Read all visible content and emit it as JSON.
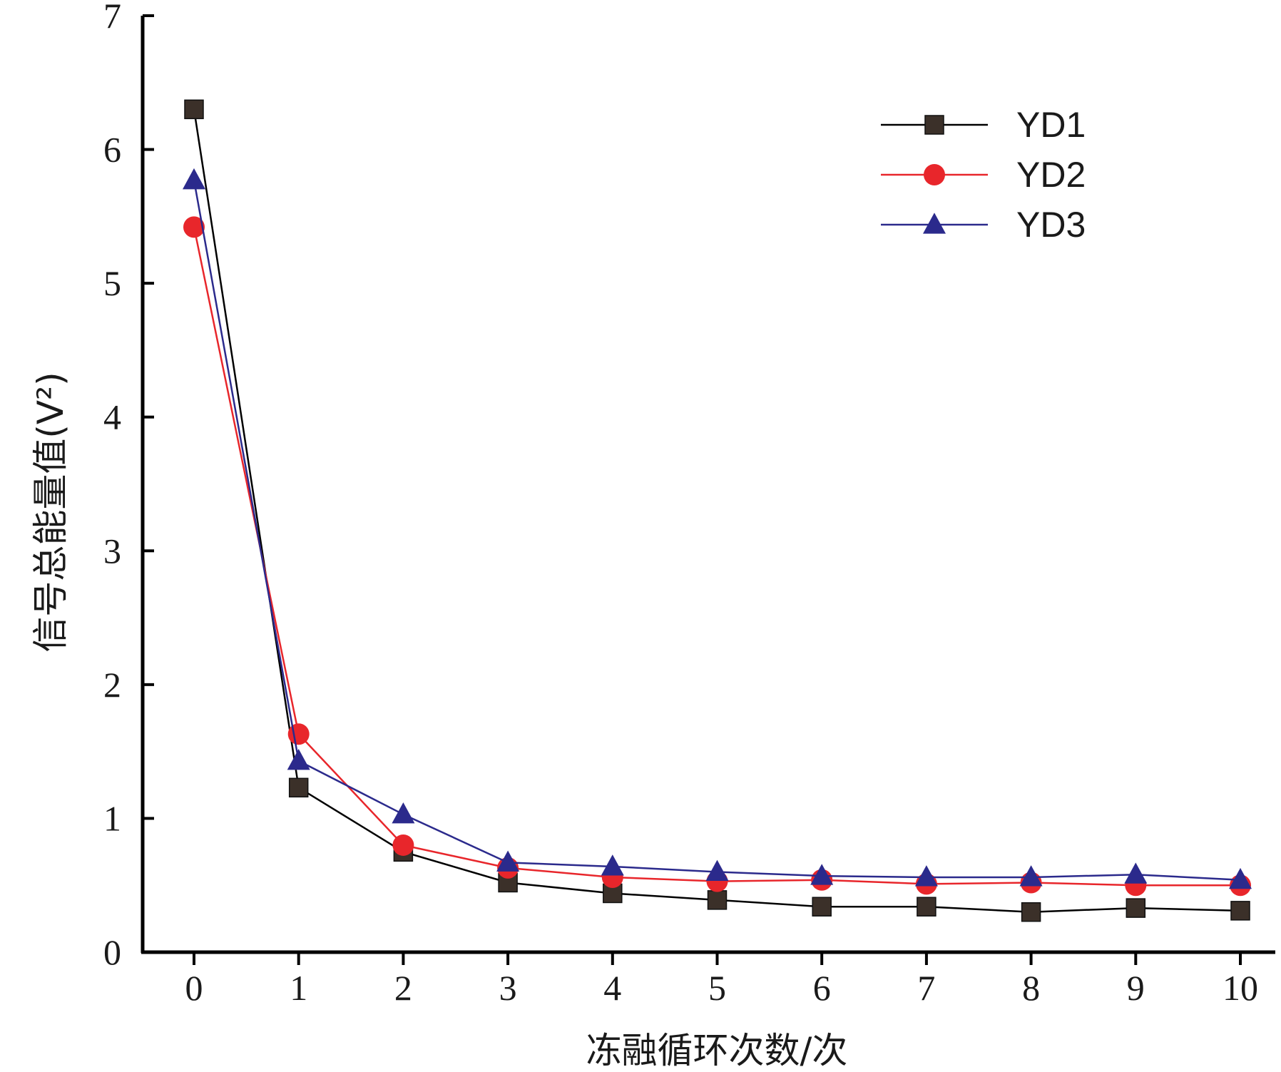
{
  "chart_data": {
    "type": "line",
    "xlabel": "冻融循环次数/次",
    "ylabel": "信号总能量值(V²)",
    "xlim": [
      -0.5,
      10.3
    ],
    "ylim": [
      0,
      7
    ],
    "x_ticks": [
      0,
      1,
      2,
      3,
      4,
      5,
      6,
      7,
      8,
      9,
      10
    ],
    "y_ticks": [
      0,
      1,
      2,
      3,
      4,
      5,
      6,
      7
    ],
    "x": [
      0,
      1,
      2,
      3,
      4,
      5,
      6,
      7,
      8,
      9,
      10
    ],
    "legend_position": "top-right",
    "grid": false,
    "series": [
      {
        "name": "YD1",
        "color": "#000000",
        "marker_color": "#3b3029",
        "marker": "square",
        "values": [
          6.3,
          1.23,
          0.75,
          0.52,
          0.44,
          0.39,
          0.34,
          0.34,
          0.3,
          0.33,
          0.31
        ]
      },
      {
        "name": "YD2",
        "color": "#e8262b",
        "marker_color": "#e8262b",
        "marker": "circle",
        "values": [
          5.42,
          1.63,
          0.8,
          0.63,
          0.56,
          0.53,
          0.54,
          0.51,
          0.52,
          0.5,
          0.5
        ]
      },
      {
        "name": "YD3",
        "color": "#2b2a8c",
        "marker_color": "#2b2a8c",
        "marker": "triangle",
        "values": [
          5.77,
          1.43,
          1.03,
          0.67,
          0.64,
          0.6,
          0.57,
          0.56,
          0.56,
          0.58,
          0.54
        ]
      }
    ]
  }
}
